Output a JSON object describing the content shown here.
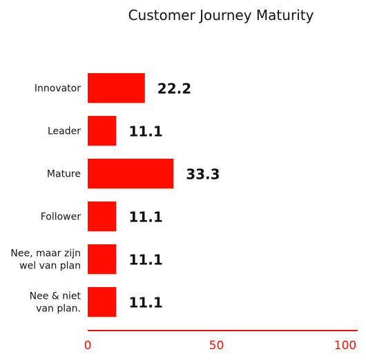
{
  "chart_data": {
    "type": "bar",
    "orientation": "horizontal",
    "title": "Customer Journey Maturity",
    "categories": [
      [
        "Innovator"
      ],
      [
        "Leader"
      ],
      [
        "Mature"
      ],
      [
        "Follower"
      ],
      [
        "Nee, maar zijn",
        "wel van plan"
      ],
      [
        "Nee & niet",
        "van plan."
      ]
    ],
    "values": [
      22.2,
      11.1,
      33.3,
      11.1,
      11.1,
      11.1
    ],
    "value_labels": [
      "22.2",
      "11.1",
      "33.3",
      "11.1",
      "11.1",
      "11.1"
    ],
    "xlim": [
      0,
      100
    ],
    "x_ticks": [
      "0",
      "50",
      "100"
    ],
    "grid": false,
    "legend": "none",
    "colors": {
      "bar": "#ff0d00",
      "axis": "#ff0d00",
      "tick_label": "#ff0d00",
      "text": "#111111"
    }
  }
}
